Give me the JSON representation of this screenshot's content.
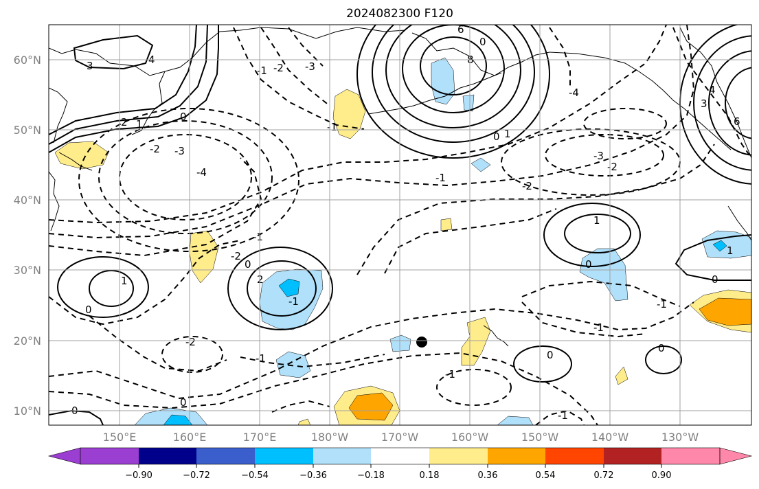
{
  "title": "2024082300 F120",
  "lat_labels": [
    "60°N",
    "50°N",
    "40°N",
    "30°N",
    "20°N",
    "10°N"
  ],
  "lon_labels": [
    "150°E",
    "160°E",
    "170°E",
    "180°W",
    "170°W",
    "160°W",
    "150°W",
    "140°W",
    "130°W"
  ],
  "colorbar": {
    "ticks": [
      "−0.90",
      "−0.72",
      "−0.54",
      "−0.36",
      "−0.18",
      "0.18",
      "0.36",
      "0.54",
      "0.72",
      "0.90"
    ],
    "colors": [
      "#9a3fd1",
      "#00008b",
      "#3a5fcd",
      "#00bfff",
      "#b0e0fa",
      "#ffffff",
      "#ffec8b",
      "#ffa500",
      "#ff4500",
      "#b22222",
      "#ff88aa"
    ]
  },
  "fill_colors": {
    "light_blue": "#b0e0fa",
    "cyan": "#00bfff",
    "light_yellow": "#ffec8b",
    "orange": "#ffa500"
  },
  "contour_labels": [
    "3",
    "4",
    "2",
    "1",
    "0",
    "-1",
    "-2",
    "-3",
    "-4",
    "8",
    "6",
    "0",
    "-1",
    "-2",
    "-3",
    "-1",
    "-2",
    "1",
    "0",
    "-1",
    "-1",
    "-2",
    "-1",
    "0",
    "0",
    "1",
    "-2",
    "2",
    "0",
    "-1",
    "0",
    "-1",
    "1",
    "0",
    "-1",
    "-1",
    "0",
    "0",
    "1",
    "0",
    "-4",
    "-3",
    "-2",
    "4",
    "3",
    "6"
  ],
  "marker": "storm-location"
}
